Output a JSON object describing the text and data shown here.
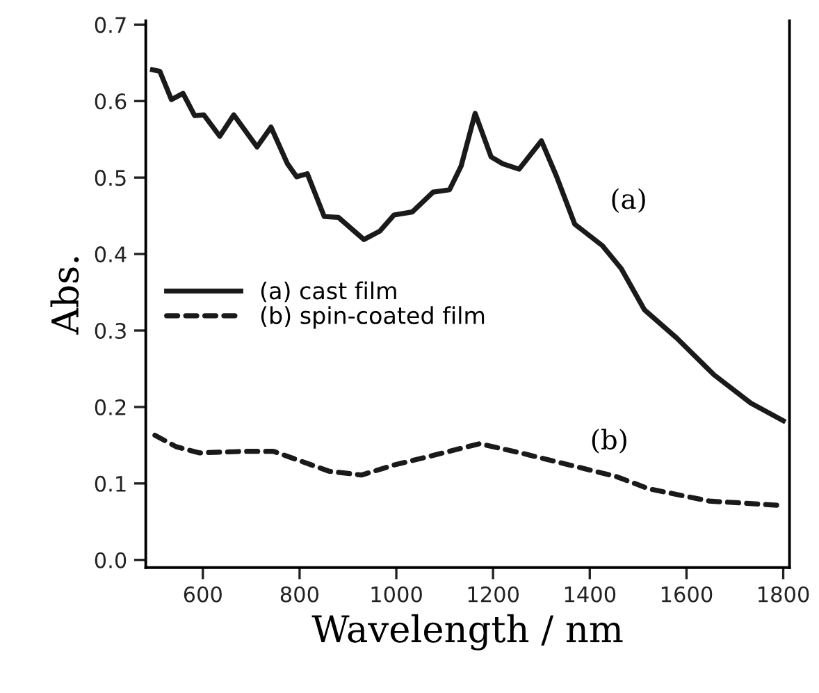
{
  "chart_data": {
    "type": "line",
    "xlabel": "Wavelength / nm",
    "ylabel": "Abs.",
    "xlim": [
      482,
      1813
    ],
    "ylim": [
      -0.01,
      0.705
    ],
    "xticks": [
      600,
      800,
      1000,
      1200,
      1400,
      1600,
      1800
    ],
    "yticks": [
      {
        "value": 0.0,
        "label": "0.0"
      },
      0.1,
      0.2,
      0.3,
      0.4,
      0.5,
      0.6,
      0.7
    ],
    "grid": false,
    "legend": "left",
    "marker": "none",
    "series": [
      {
        "name": "(a) cast film",
        "color": "#1a1a1a",
        "line_style": "solid",
        "x": [
          496,
          511,
          535,
          559,
          583,
          602,
          635,
          664,
          712,
          741,
          775,
          794,
          816,
          851,
          880,
          933,
          966,
          995,
          1033,
          1076,
          1110,
          1134,
          1163,
          1196,
          1220,
          1254,
          1300,
          1331,
          1369,
          1426,
          1465,
          1513,
          1580,
          1657,
          1733,
          1800
        ],
        "values": [
          0.641,
          0.639,
          0.602,
          0.61,
          0.581,
          0.582,
          0.554,
          0.582,
          0.54,
          0.566,
          0.518,
          0.501,
          0.505,
          0.449,
          0.448,
          0.419,
          0.43,
          0.451,
          0.455,
          0.481,
          0.484,
          0.515,
          0.584,
          0.527,
          0.518,
          0.511,
          0.548,
          0.502,
          0.439,
          0.411,
          0.381,
          0.327,
          0.29,
          0.242,
          0.205,
          0.182
        ]
      },
      {
        "name": "(b) spin-coated film",
        "color": "#1a1a1a",
        "line_style": "dashed",
        "x": [
          501,
          545,
          592,
          688,
          746,
          861,
          928,
          995,
          1072,
          1172,
          1263,
          1359,
          1455,
          1522,
          1647,
          1800
        ],
        "values": [
          0.163,
          0.148,
          0.14,
          0.142,
          0.142,
          0.116,
          0.111,
          0.124,
          0.136,
          0.152,
          0.139,
          0.124,
          0.109,
          0.093,
          0.077,
          0.071
        ]
      }
    ],
    "annotations": [
      "(a)",
      "(b)"
    ]
  }
}
